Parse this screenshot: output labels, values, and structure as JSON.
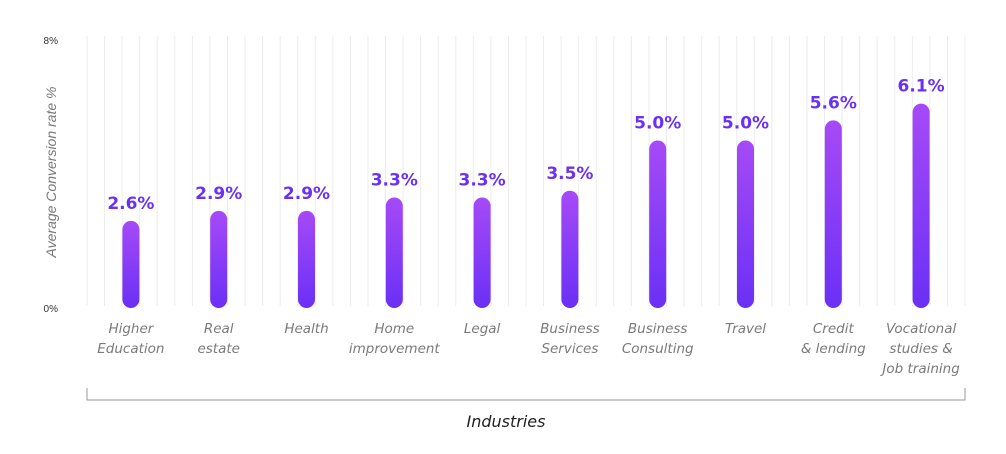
{
  "chart_data": {
    "type": "bar",
    "ylabel": "Average Conversion rate  %",
    "xlabel": "Industries",
    "ylim": [
      0,
      8
    ],
    "yticks": [
      "0%",
      "8%"
    ],
    "grid": true,
    "categories": [
      [
        "Higher",
        "Education"
      ],
      [
        "Real",
        "estate"
      ],
      [
        "Health"
      ],
      [
        "Home",
        "improvement"
      ],
      [
        "Legal"
      ],
      [
        "Business",
        "Services"
      ],
      [
        "Business",
        "Consulting"
      ],
      [
        "Travel"
      ],
      [
        "Credit",
        "& lending"
      ],
      [
        "Vocational",
        "studies &",
        "Job training"
      ]
    ],
    "values": [
      2.6,
      2.9,
      2.9,
      3.3,
      3.3,
      3.5,
      5.0,
      5.0,
      5.6,
      6.1
    ],
    "value_labels": [
      "2.6%",
      "2.9%",
      "2.9%",
      "3.3%",
      "3.3%",
      "3.5%",
      "5.0%",
      "5.0%",
      "5.6%",
      "6.1%"
    ],
    "colors": {
      "bar_top": "#a64af7",
      "bar_bottom": "#6a30f5",
      "label": "#6a30f5",
      "grid": "#ececec",
      "bracket": "#999999"
    }
  }
}
